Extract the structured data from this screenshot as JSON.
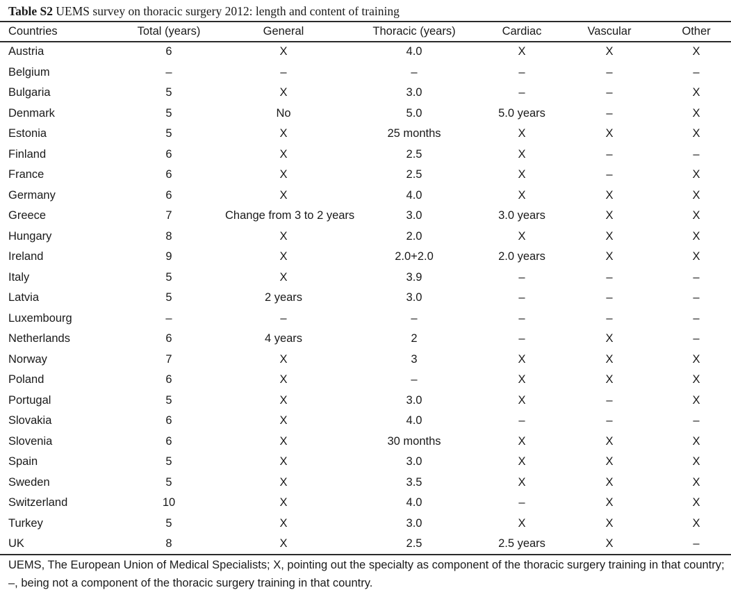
{
  "caption": {
    "label": "Table S2",
    "title": "UEMS survey on thoracic surgery 2012: length and content of training"
  },
  "table": {
    "headers": [
      "Countries",
      "Total (years)",
      "General",
      "Thoracic (years)",
      "Cardiac",
      "Vascular",
      "Other"
    ],
    "rows": [
      [
        "Austria",
        "6",
        "X",
        "4.0",
        "X",
        "X",
        "X"
      ],
      [
        "Belgium",
        "–",
        "–",
        "–",
        "–",
        "–",
        "–"
      ],
      [
        "Bulgaria",
        "5",
        "X",
        "3.0",
        "–",
        "–",
        "X"
      ],
      [
        "Denmark",
        "5",
        "No",
        "5.0",
        "5.0 years",
        "–",
        "X"
      ],
      [
        "Estonia",
        "5",
        "X",
        "25 months",
        "X",
        "X",
        "X"
      ],
      [
        "Finland",
        "6",
        "X",
        "2.5",
        "X",
        "–",
        "–"
      ],
      [
        "France",
        "6",
        "X",
        "2.5",
        "X",
        "–",
        "X"
      ],
      [
        "Germany",
        "6",
        "X",
        "4.0",
        "X",
        "X",
        "X"
      ],
      [
        "Greece",
        "7",
        "Change from 3 to 2 years",
        "3.0",
        "3.0 years",
        "X",
        "X"
      ],
      [
        "Hungary",
        "8",
        "X",
        "2.0",
        "X",
        "X",
        "X"
      ],
      [
        "Ireland",
        "9",
        "X",
        "2.0+2.0",
        "2.0 years",
        "X",
        "X"
      ],
      [
        "Italy",
        "5",
        "X",
        "3.9",
        "–",
        "–",
        "–"
      ],
      [
        "Latvia",
        "5",
        "2 years",
        "3.0",
        "–",
        "–",
        "–"
      ],
      [
        "Luxembourg",
        "–",
        "–",
        "–",
        "–",
        "–",
        "–"
      ],
      [
        "Netherlands",
        "6",
        "4 years",
        "2",
        "–",
        "X",
        "–"
      ],
      [
        "Norway",
        "7",
        "X",
        "3",
        "X",
        "X",
        "X"
      ],
      [
        "Poland",
        "6",
        "X",
        "–",
        "X",
        "X",
        "X"
      ],
      [
        "Portugal",
        "5",
        "X",
        "3.0",
        "X",
        "–",
        "X"
      ],
      [
        "Slovakia",
        "6",
        "X",
        "4.0",
        "–",
        "–",
        "–"
      ],
      [
        "Slovenia",
        "6",
        "X",
        "30 months",
        "X",
        "X",
        "X"
      ],
      [
        "Spain",
        "5",
        "X",
        "3.0",
        "X",
        "X",
        "X"
      ],
      [
        "Sweden",
        "5",
        "X",
        "3.5",
        "X",
        "X",
        "X"
      ],
      [
        "Switzerland",
        "10",
        "X",
        "4.0",
        "–",
        "X",
        "X"
      ],
      [
        "Turkey",
        "5",
        "X",
        "3.0",
        "X",
        "X",
        "X"
      ],
      [
        "UK",
        "8",
        "X",
        "2.5",
        "2.5 years",
        "X",
        "–"
      ]
    ]
  },
  "footnote": "UEMS, The European Union of Medical Specialists; X, pointing out the specialty as component of the thoracic surgery training in that country; –, being not a component of the thoracic surgery training in that country."
}
